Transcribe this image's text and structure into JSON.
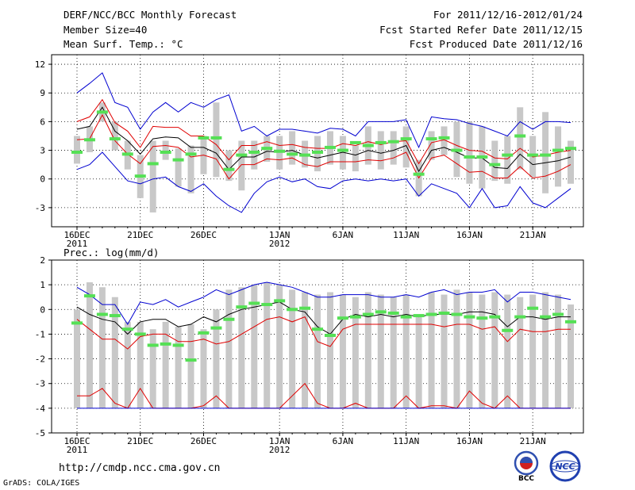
{
  "header": {
    "title": "DERF/NCC/BCC Monthly Forecast",
    "member_size": "Member Size=40",
    "variable": "Mean Surf. Temp.: °C",
    "forecast_period": "For 2011/12/16-2012/01/24",
    "started_date": "Fcst Started Refer Date 2011/12/15",
    "produced_date": "Fcst Produced Date 2011/12/16"
  },
  "footer": {
    "url": "http://cmdp.ncc.cma.gov.cn",
    "credit": "GrADS: COLA/IGES",
    "logo_bcc": "BCC",
    "logo_ncc": "NCC"
  },
  "colors": {
    "box": "#c8c8c8",
    "median": "#55e055",
    "mean": "#000000",
    "inner": "#e00000",
    "outer": "#0000d0",
    "grid": "#000000"
  },
  "chart_data": [
    {
      "type": "box-ensemble",
      "title": "Mean Surf. Temp.: °C",
      "ylim": [
        -5,
        13
      ],
      "yticks": [
        -3,
        0,
        3,
        6,
        9,
        12
      ],
      "x": [
        1,
        2,
        3,
        4,
        5,
        6,
        7,
        8,
        9,
        10,
        11,
        12,
        13,
        14,
        15,
        16,
        17,
        18,
        19,
        20,
        21,
        22,
        23,
        24,
        25,
        26,
        27,
        28,
        29,
        30,
        31,
        32,
        33,
        34,
        35,
        36,
        37,
        38,
        39,
        40
      ],
      "xtick_positions": [
        1,
        6,
        11,
        17,
        22,
        27,
        32,
        37
      ],
      "xtick_labels": [
        "16DEC",
        "21DEC",
        "26DEC",
        "1JAN",
        "6JAN",
        "11JAN",
        "16JAN",
        "21JAN"
      ],
      "xtick_years": [
        {
          "x": 1,
          "label": "2011"
        },
        {
          "x": 17,
          "label": "2012"
        }
      ],
      "box_low": [
        1.6,
        2.8,
        6.0,
        3.0,
        1.0,
        -2.0,
        -3.5,
        2.0,
        -0.8,
        -1.5,
        0.5,
        0.2,
        -0.2,
        -1.2,
        1.0,
        1.8,
        1.0,
        1.5,
        1.2,
        0.8,
        1.5,
        1.0,
        0.8,
        1.5,
        1.0,
        1.5,
        1.2,
        -1.8,
        2.0,
        2.5,
        0.2,
        -0.5,
        -1.0,
        -0.2,
        -0.5,
        1.0,
        0.2,
        -1.5,
        -0.8,
        -0.5
      ],
      "box_high": [
        4.5,
        5.5,
        8.0,
        6.0,
        4.0,
        2.5,
        4.0,
        4.0,
        3.2,
        3.5,
        4.5,
        8.0,
        3.0,
        4.0,
        4.0,
        4.5,
        4.5,
        5.0,
        4.0,
        4.5,
        5.0,
        4.5,
        3.5,
        5.5,
        5.0,
        5.0,
        5.5,
        2.0,
        5.0,
        5.5,
        6.0,
        6.0,
        5.5,
        4.0,
        4.5,
        7.5,
        4.5,
        7.0,
        5.5,
        4.0
      ],
      "median": [
        2.8,
        4.1,
        7.0,
        4.2,
        2.6,
        0.3,
        1.6,
        2.8,
        2.0,
        2.6,
        4.3,
        4.3,
        1.0,
        2.5,
        2.8,
        3.2,
        2.9,
        2.6,
        2.5,
        2.8,
        3.3,
        3.0,
        3.8,
        3.5,
        3.8,
        3.9,
        4.2,
        0.5,
        4.2,
        4.3,
        3.0,
        2.3,
        2.3,
        1.5,
        2.5,
        4.5,
        2.5,
        2.5,
        3.0,
        3.2
      ],
      "series": [
        {
          "name": "ensemble max",
          "role": "outer",
          "values": [
            9.0,
            10.0,
            11.1,
            8.0,
            7.5,
            5.2,
            7.0,
            8.0,
            7.0,
            8.0,
            7.5,
            8.3,
            8.8,
            5.0,
            5.5,
            4.5,
            5.2,
            5.2,
            5.0,
            4.8,
            5.3,
            5.2,
            4.5,
            6.0,
            6.0,
            6.0,
            6.2,
            3.3,
            6.5,
            6.3,
            6.2,
            5.8,
            5.5,
            5.0,
            4.5,
            6.0,
            5.2,
            6.0,
            6.0,
            5.9
          ]
        },
        {
          "name": "upper bound",
          "role": "inner",
          "values": [
            6.0,
            6.5,
            8.3,
            5.9,
            5.0,
            3.3,
            5.5,
            5.4,
            5.4,
            4.5,
            4.5,
            3.6,
            2.0,
            3.5,
            3.5,
            3.9,
            3.5,
            3.6,
            3.3,
            3.2,
            3.2,
            3.7,
            3.5,
            3.9,
            3.6,
            3.9,
            4.0,
            1.6,
            3.8,
            4.1,
            3.5,
            3.0,
            2.9,
            2.2,
            2.1,
            3.2,
            2.3,
            2.5,
            2.8,
            3.0
          ]
        },
        {
          "name": "ensemble mean",
          "role": "mean",
          "values": [
            5.2,
            5.5,
            7.5,
            5.0,
            4.0,
            2.6,
            4.2,
            4.4,
            4.3,
            3.3,
            3.3,
            2.7,
            1.0,
            2.3,
            2.3,
            2.9,
            2.8,
            3.0,
            2.5,
            2.2,
            2.5,
            2.8,
            2.5,
            3.0,
            2.7,
            3.0,
            3.5,
            0.8,
            3.0,
            3.3,
            2.8,
            2.2,
            2.2,
            1.2,
            1.1,
            2.6,
            1.5,
            1.7,
            1.9,
            2.3
          ]
        },
        {
          "name": "lower bound",
          "role": "inner",
          "values": [
            4.1,
            4.2,
            6.7,
            4.0,
            2.6,
            1.6,
            3.4,
            3.5,
            3.3,
            2.3,
            2.5,
            2.1,
            0.0,
            1.5,
            1.5,
            2.1,
            2.0,
            2.2,
            1.5,
            1.3,
            1.8,
            1.8,
            1.8,
            2.0,
            1.9,
            2.2,
            2.8,
            0.1,
            2.2,
            2.5,
            1.6,
            0.7,
            0.8,
            0.1,
            0.1,
            1.3,
            0.1,
            0.3,
            0.8,
            1.5
          ]
        },
        {
          "name": "ensemble min",
          "role": "outer",
          "values": [
            1.0,
            1.5,
            2.8,
            1.3,
            -0.2,
            -0.5,
            0.0,
            0.2,
            -0.8,
            -1.3,
            -0.5,
            -1.8,
            -2.8,
            -3.5,
            -1.5,
            -0.3,
            0.2,
            -0.3,
            0.0,
            -0.8,
            -1.0,
            -0.2,
            0.0,
            -0.2,
            0.0,
            -0.2,
            0.0,
            -1.8,
            -0.5,
            -1.0,
            -1.5,
            -3.0,
            -1.0,
            -3.0,
            -2.8,
            -0.8,
            -2.5,
            -3.0,
            -2.0,
            -1.0
          ]
        }
      ]
    },
    {
      "type": "box-ensemble",
      "title": "Prec.: log(mm/d)",
      "ylim": [
        -5,
        2
      ],
      "yticks": [
        -5,
        -4,
        -3,
        -2,
        -1,
        0,
        1,
        2
      ],
      "x": [
        1,
        2,
        3,
        4,
        5,
        6,
        7,
        8,
        9,
        10,
        11,
        12,
        13,
        14,
        15,
        16,
        17,
        18,
        19,
        20,
        21,
        22,
        23,
        24,
        25,
        26,
        27,
        28,
        29,
        30,
        31,
        32,
        33,
        34,
        35,
        36,
        37,
        38,
        39,
        40
      ],
      "xtick_positions": [
        1,
        6,
        11,
        17,
        22,
        27,
        32,
        37
      ],
      "xtick_labels": [
        "16DEC",
        "21DEC",
        "26DEC",
        "1JAN",
        "6JAN",
        "11JAN",
        "16JAN",
        "21JAN"
      ],
      "xtick_years": [
        {
          "x": 1,
          "label": "2011"
        },
        {
          "x": 17,
          "label": "2012"
        }
      ],
      "box_low": [
        -4.0,
        -4.0,
        -4.0,
        -4.0,
        -4.0,
        -4.0,
        -4.0,
        -4.0,
        -4.0,
        -4.0,
        -4.0,
        -4.0,
        -4.0,
        -4.0,
        -4.0,
        -4.0,
        -4.0,
        -4.0,
        -4.0,
        -4.0,
        -4.0,
        -4.0,
        -4.0,
        -4.0,
        -4.0,
        -4.0,
        -4.0,
        -4.0,
        -4.0,
        -4.0,
        -4.0,
        -4.0,
        -4.0,
        -4.0,
        -4.0,
        -4.0,
        -4.0,
        -4.0,
        -4.0,
        -4.0
      ],
      "box_high": [
        0.0,
        1.1,
        0.9,
        0.5,
        -0.5,
        -0.5,
        -0.8,
        -0.5,
        -0.7,
        -0.6,
        -0.8,
        0.0,
        0.8,
        0.9,
        1.0,
        1.1,
        1.0,
        0.8,
        0.7,
        0.6,
        0.7,
        0.6,
        0.5,
        0.7,
        0.6,
        0.5,
        0.6,
        -0.2,
        0.7,
        0.6,
        0.8,
        0.7,
        0.6,
        0.7,
        0.6,
        0.5,
        0.6,
        0.7,
        0.6,
        0.2
      ],
      "median": [
        -0.55,
        0.55,
        -0.2,
        -0.25,
        -0.8,
        -1.0,
        -1.45,
        -1.4,
        -1.45,
        -2.05,
        -0.95,
        -0.75,
        -0.4,
        0.1,
        0.25,
        0.2,
        0.35,
        0.0,
        0.05,
        -0.8,
        -1.05,
        -0.35,
        -0.3,
        -0.2,
        -0.1,
        -0.15,
        -0.3,
        -0.25,
        -0.2,
        -0.15,
        -0.2,
        -0.3,
        -0.35,
        -0.3,
        -0.85,
        -0.3,
        0.05,
        -0.3,
        -0.2,
        -0.5
      ],
      "series": [
        {
          "name": "ensemble max",
          "role": "outer",
          "values": [
            0.9,
            0.6,
            0.2,
            0.2,
            -0.6,
            0.3,
            0.2,
            0.4,
            0.1,
            0.3,
            0.5,
            0.8,
            0.6,
            0.8,
            1.0,
            1.1,
            1.0,
            0.9,
            0.7,
            0.5,
            0.5,
            0.6,
            0.6,
            0.6,
            0.5,
            0.5,
            0.6,
            0.5,
            0.7,
            0.8,
            0.6,
            0.7,
            0.7,
            0.8,
            0.3,
            0.7,
            0.7,
            0.6,
            0.5,
            0.4
          ]
        },
        {
          "name": "ensemble mean",
          "role": "mean",
          "values": [
            0.1,
            -0.2,
            -0.4,
            -0.5,
            -1.0,
            -0.5,
            -0.4,
            -0.4,
            -0.7,
            -0.6,
            -0.3,
            -0.5,
            -0.2,
            0.0,
            0.1,
            0.2,
            0.3,
            0.0,
            -0.1,
            -0.7,
            -1.0,
            -0.4,
            -0.2,
            -0.3,
            -0.2,
            -0.3,
            -0.2,
            -0.3,
            -0.2,
            -0.2,
            -0.2,
            -0.1,
            -0.1,
            -0.2,
            -0.7,
            -0.3,
            -0.3,
            -0.4,
            -0.3,
            -0.3
          ]
        },
        {
          "name": "ensemble mean - spread",
          "role": "inner",
          "values": [
            -0.4,
            -0.8,
            -1.2,
            -1.2,
            -1.6,
            -1.1,
            -1.0,
            -1.0,
            -1.3,
            -1.3,
            -1.2,
            -1.4,
            -1.3,
            -1.0,
            -0.7,
            -0.4,
            -0.3,
            -0.5,
            -0.3,
            -1.3,
            -1.5,
            -0.8,
            -0.6,
            -0.6,
            -0.6,
            -0.6,
            -0.6,
            -0.6,
            -0.6,
            -0.7,
            -0.6,
            -0.6,
            -0.8,
            -0.7,
            -1.3,
            -0.8,
            -0.9,
            -0.9,
            -0.8,
            -0.8
          ]
        },
        {
          "name": "ensemble min",
          "role": "inner",
          "values": [
            -3.5,
            -3.5,
            -3.2,
            -3.8,
            -4.0,
            -3.2,
            -4.0,
            -4.0,
            -4.0,
            -4.0,
            -3.9,
            -3.5,
            -4.0,
            -4.0,
            -4.0,
            -4.0,
            -4.0,
            -3.5,
            -3.0,
            -3.8,
            -4.0,
            -4.0,
            -3.8,
            -4.0,
            -4.0,
            -4.0,
            -3.5,
            -4.0,
            -3.9,
            -3.9,
            -4.0,
            -3.3,
            -3.8,
            -4.0,
            -3.5,
            -4.0,
            -4.0,
            -4.0,
            -4.0,
            -4.0
          ]
        },
        {
          "name": "floor",
          "role": "outer",
          "values": [
            -4.0,
            -4.0,
            -4.0,
            -4.0,
            -4.0,
            -4.0,
            -4.0,
            -4.0,
            -4.0,
            -4.0,
            -4.0,
            -4.0,
            -4.0,
            -4.0,
            -4.0,
            -4.0,
            -4.0,
            -4.0,
            -4.0,
            -4.0,
            -4.0,
            -4.0,
            -4.0,
            -4.0,
            -4.0,
            -4.0,
            -4.0,
            -4.0,
            -4.0,
            -4.0,
            -4.0,
            -4.0,
            -4.0,
            -4.0,
            -4.0,
            -4.0,
            -4.0,
            -4.0,
            -4.0,
            -4.0
          ]
        }
      ]
    }
  ]
}
